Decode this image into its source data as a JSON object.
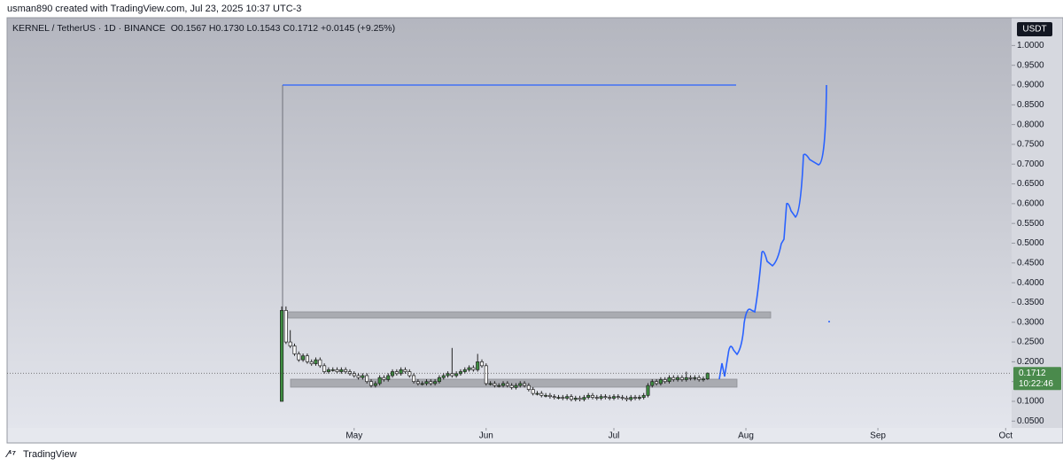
{
  "chart_data": {
    "type": "candlestick",
    "caption": "usman890 created with TradingView.com, Jul 23, 2025 10:37 UTC-3",
    "title": "KERNEL / TetherUS · 1D · BINANCE",
    "subtitle": "O0.1567 H0.1730 L0.1543 C0.1712 +0.0145 (+9.25%)",
    "currency": "USDT",
    "last_price": 0.1712,
    "countdown": "10:22:46",
    "brand": "TradingView",
    "up_color": "#3d8c40",
    "down_color": "#ffffff",
    "wick_color": "#222222",
    "open": [
      0.1,
      0.33,
      0.25,
      0.24,
      0.22,
      0.205,
      0.215,
      0.2,
      0.195,
      0.205,
      0.19,
      0.175,
      0.18,
      0.18,
      0.175,
      0.18,
      0.175,
      0.17,
      0.165,
      0.16,
      0.165,
      0.15,
      0.14,
      0.145,
      0.16,
      0.155,
      0.165,
      0.175,
      0.17,
      0.18,
      0.175,
      0.165,
      0.15,
      0.145,
      0.145,
      0.15,
      0.145,
      0.15,
      0.16,
      0.165,
      0.17,
      0.165,
      0.17,
      0.175,
      0.18,
      0.185,
      0.18,
      0.2,
      0.19,
      0.145,
      0.145,
      0.14,
      0.14,
      0.145,
      0.14,
      0.135,
      0.14,
      0.145,
      0.14,
      0.13,
      0.12,
      0.12,
      0.115,
      0.115,
      0.112,
      0.11,
      0.11,
      0.108,
      0.112,
      0.105,
      0.108,
      0.105,
      0.11,
      0.115,
      0.11,
      0.108,
      0.112,
      0.11,
      0.108,
      0.112,
      0.11,
      0.108,
      0.105,
      0.11,
      0.108,
      0.11,
      0.115,
      0.14,
      0.15,
      0.145,
      0.155,
      0.15,
      0.16,
      0.155,
      0.16,
      0.155,
      0.16,
      0.158,
      0.16,
      0.155,
      0.1567
    ],
    "high": [
      0.34,
      0.34,
      0.28,
      0.246,
      0.226,
      0.221,
      0.221,
      0.206,
      0.211,
      0.211,
      0.196,
      0.186,
      0.186,
      0.186,
      0.186,
      0.186,
      0.181,
      0.176,
      0.171,
      0.171,
      0.171,
      0.156,
      0.151,
      0.166,
      0.166,
      0.171,
      0.181,
      0.181,
      0.186,
      0.186,
      0.181,
      0.171,
      0.156,
      0.151,
      0.156,
      0.156,
      0.156,
      0.166,
      0.171,
      0.176,
      0.235,
      0.176,
      0.181,
      0.186,
      0.191,
      0.191,
      0.22,
      0.206,
      0.196,
      0.151,
      0.151,
      0.146,
      0.151,
      0.151,
      0.146,
      0.146,
      0.151,
      0.151,
      0.146,
      0.136,
      0.126,
      0.126,
      0.121,
      0.121,
      0.118,
      0.116,
      0.116,
      0.118,
      0.118,
      0.114,
      0.114,
      0.116,
      0.121,
      0.121,
      0.116,
      0.118,
      0.118,
      0.116,
      0.118,
      0.118,
      0.116,
      0.114,
      0.116,
      0.116,
      0.116,
      0.121,
      0.146,
      0.156,
      0.156,
      0.161,
      0.161,
      0.166,
      0.166,
      0.166,
      0.166,
      0.175,
      0.166,
      0.166,
      0.166,
      0.163,
      0.173
    ],
    "low": [
      0.1,
      0.245,
      0.235,
      0.215,
      0.2,
      0.2,
      0.195,
      0.19,
      0.19,
      0.185,
      0.17,
      0.17,
      0.175,
      0.17,
      0.17,
      0.17,
      0.165,
      0.16,
      0.155,
      0.155,
      0.145,
      0.135,
      0.135,
      0.14,
      0.15,
      0.15,
      0.16,
      0.165,
      0.165,
      0.17,
      0.16,
      0.145,
      0.14,
      0.14,
      0.14,
      0.14,
      0.14,
      0.145,
      0.155,
      0.16,
      0.16,
      0.16,
      0.165,
      0.17,
      0.175,
      0.175,
      0.175,
      0.185,
      0.14,
      0.14,
      0.135,
      0.135,
      0.135,
      0.135,
      0.13,
      0.13,
      0.135,
      0.135,
      0.125,
      0.115,
      0.115,
      0.11,
      0.11,
      0.107,
      0.105,
      0.105,
      0.103,
      0.103,
      0.1,
      0.1,
      0.1,
      0.1,
      0.105,
      0.105,
      0.103,
      0.103,
      0.105,
      0.103,
      0.103,
      0.105,
      0.103,
      0.1,
      0.1,
      0.103,
      0.103,
      0.105,
      0.11,
      0.135,
      0.14,
      0.14,
      0.145,
      0.145,
      0.15,
      0.15,
      0.15,
      0.15,
      0.153,
      0.153,
      0.15,
      0.15,
      0.1543
    ],
    "close": [
      0.33,
      0.25,
      0.24,
      0.22,
      0.205,
      0.215,
      0.2,
      0.195,
      0.205,
      0.19,
      0.175,
      0.18,
      0.18,
      0.175,
      0.18,
      0.175,
      0.17,
      0.165,
      0.16,
      0.165,
      0.15,
      0.14,
      0.145,
      0.16,
      0.155,
      0.165,
      0.175,
      0.17,
      0.18,
      0.175,
      0.165,
      0.15,
      0.145,
      0.145,
      0.15,
      0.145,
      0.15,
      0.16,
      0.165,
      0.17,
      0.165,
      0.17,
      0.175,
      0.18,
      0.185,
      0.18,
      0.2,
      0.19,
      0.145,
      0.145,
      0.14,
      0.14,
      0.145,
      0.14,
      0.135,
      0.14,
      0.145,
      0.14,
      0.13,
      0.12,
      0.12,
      0.115,
      0.115,
      0.112,
      0.11,
      0.11,
      0.108,
      0.112,
      0.105,
      0.108,
      0.105,
      0.11,
      0.115,
      0.11,
      0.108,
      0.112,
      0.11,
      0.108,
      0.112,
      0.11,
      0.108,
      0.105,
      0.11,
      0.108,
      0.11,
      0.115,
      0.14,
      0.15,
      0.145,
      0.155,
      0.15,
      0.16,
      0.155,
      0.16,
      0.155,
      0.16,
      0.158,
      0.16,
      0.155,
      0.1567,
      0.1712
    ],
    "xlim": [
      -64.5,
      171.4
    ],
    "xticks": [
      {
        "value": 17,
        "label": "May"
      },
      {
        "value": 48,
        "label": "Jun"
      },
      {
        "value": 78,
        "label": "Jul"
      },
      {
        "value": 109,
        "label": "Aug"
      },
      {
        "value": 140,
        "label": "Sep"
      },
      {
        "value": 170,
        "label": "Oct"
      }
    ],
    "ylim": [
      0.0328,
      1.0703
    ],
    "yticks": [
      {
        "value": 0.05,
        "label": "0.0500"
      },
      {
        "value": 0.1,
        "label": "0.1000"
      },
      {
        "value": 0.15,
        "label": "0.1500"
      },
      {
        "value": 0.2,
        "label": "0.2000"
      },
      {
        "value": 0.25,
        "label": "0.2500"
      },
      {
        "value": 0.3,
        "label": "0.3000"
      },
      {
        "value": 0.35,
        "label": "0.3500"
      },
      {
        "value": 0.4,
        "label": "0.4000"
      },
      {
        "value": 0.45,
        "label": "0.4500"
      },
      {
        "value": 0.5,
        "label": "0.5000"
      },
      {
        "value": 0.55,
        "label": "0.5500"
      },
      {
        "value": 0.6,
        "label": "0.6000"
      },
      {
        "value": 0.65,
        "label": "0.6500"
      },
      {
        "value": 0.7,
        "label": "0.7000"
      },
      {
        "value": 0.75,
        "label": "0.7500"
      },
      {
        "value": 0.8,
        "label": "0.8000"
      },
      {
        "value": 0.85,
        "label": "0.8500"
      },
      {
        "value": 0.9,
        "label": "0.9000"
      },
      {
        "value": 0.95,
        "label": "0.9500"
      },
      {
        "value": 1.0,
        "label": "1.0000"
      }
    ]
  }
}
